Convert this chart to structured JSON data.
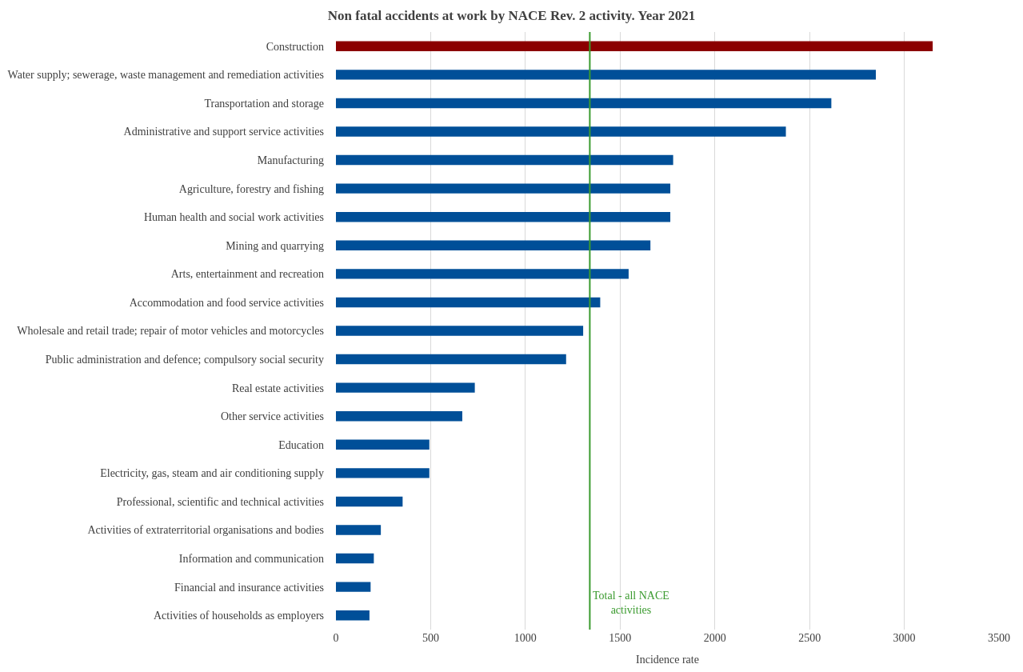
{
  "chart_data": {
    "type": "bar",
    "orientation": "horizontal",
    "title": "Non fatal accidents at work by NACE Rev. 2 activity. Year 2021",
    "xlabel": "Incidence rate",
    "categories": [
      "Construction",
      "Water supply; sewerage, waste management and remediation activities",
      "Transportation and storage",
      "Administrative and support service activities",
      "Manufacturing",
      "Agriculture, forestry and fishing",
      "Human health and social work activities",
      "Mining and quarrying",
      "Arts, entertainment and recreation",
      "Accommodation and food service activities",
      "Wholesale and retail trade; repair of motor vehicles and motorcycles",
      "Public administration and defence; compulsory social security",
      "Real estate activities",
      "Other service activities",
      "Education",
      "Electricity, gas, steam and air conditioning supply",
      "Professional, scientific and technical activities",
      "Activities of extraterritorial organisations and bodies",
      "Information and communication",
      "Financial and insurance activities",
      "Activities of households as employers"
    ],
    "values": [
      3150,
      2850,
      2615,
      2375,
      1780,
      1765,
      1765,
      1660,
      1545,
      1395,
      1305,
      1215,
      733,
      667,
      493,
      493,
      352,
      237,
      200,
      183,
      177
    ],
    "colors": [
      "#8b0000",
      "#004f98",
      "#004f98",
      "#004f98",
      "#004f98",
      "#004f98",
      "#004f98",
      "#004f98",
      "#004f98",
      "#004f98",
      "#004f98",
      "#004f98",
      "#004f98",
      "#004f98",
      "#004f98",
      "#004f98",
      "#004f98",
      "#004f98",
      "#004f98",
      "#004f98",
      "#004f98"
    ],
    "xlim": [
      0,
      3500
    ],
    "xticks": [
      0,
      500,
      1000,
      1500,
      2000,
      2500,
      3000,
      3500
    ],
    "grid": "x",
    "ref_lines": [
      {
        "axis": "x",
        "value": 1340,
        "label": "Total - all NACE activities",
        "color": "#3a9a2e"
      }
    ]
  }
}
